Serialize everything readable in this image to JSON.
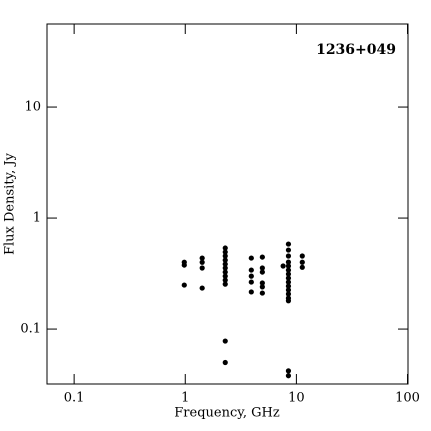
{
  "chart_data": {
    "type": "scatter",
    "log_x": true,
    "log_y": true,
    "annotation": "1236+049",
    "x_label": "Frequency, GHz",
    "y_label": "Flux Density, Jy",
    "xlim": [
      0.057,
      101
    ],
    "ylim": [
      0.032,
      56
    ],
    "xticks": [
      0.1,
      1,
      10,
      100
    ],
    "yticks": [
      0.1,
      1,
      10
    ],
    "color": "#000000",
    "x": [
      0.98,
      0.98,
      0.98,
      1.42,
      1.42,
      1.42,
      1.42,
      2.29,
      2.29,
      2.29,
      2.29,
      2.29,
      2.29,
      2.29,
      2.29,
      2.29,
      2.29,
      2.29,
      2.29,
      3.93,
      3.93,
      3.93,
      3.93,
      3.93,
      4.94,
      4.94,
      4.94,
      4.94,
      4.94,
      4.94,
      7.6,
      8.48,
      8.48,
      8.48,
      8.48,
      8.48,
      8.48,
      8.48,
      8.48,
      8.48,
      8.48,
      8.48,
      8.48,
      8.48,
      8.48,
      8.48,
      8.48,
      11.3,
      11.3,
      11.3
    ],
    "values": [
      0.4,
      0.377,
      0.249,
      0.436,
      0.4,
      0.355,
      0.234,
      0.537,
      0.494,
      0.455,
      0.418,
      0.385,
      0.355,
      0.326,
      0.3,
      0.276,
      0.254,
      0.078,
      0.05,
      0.436,
      0.34,
      0.3,
      0.265,
      0.216,
      0.445,
      0.355,
      0.326,
      0.26,
      0.24,
      0.211,
      0.37,
      0.583,
      0.515,
      0.455,
      0.401,
      0.37,
      0.34,
      0.313,
      0.288,
      0.265,
      0.244,
      0.225,
      0.207,
      0.19,
      0.18,
      0.042,
      0.038,
      0.455,
      0.4,
      0.36
    ]
  }
}
